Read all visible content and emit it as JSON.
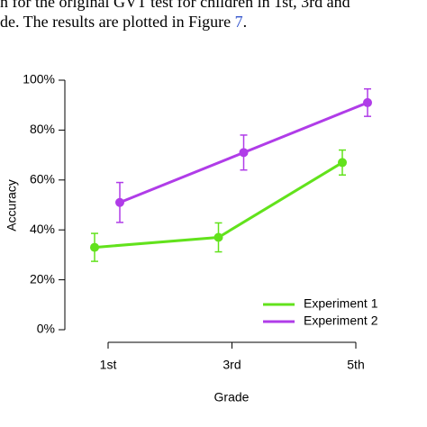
{
  "page_text": {
    "line1": "n for the original GVT test for children in 1st, 3rd and",
    "line2": "de. The results are plotted in Figure",
    "figure_ref": "7",
    "line2_end": "."
  },
  "chart_data": {
    "type": "line",
    "x_label": "Grade",
    "y_label": "Accuracy",
    "categories": [
      "1st",
      "3rd",
      "5th"
    ],
    "series": [
      {
        "name": "Experiment 1",
        "color": "#62e21c",
        "values": [
          33,
          37,
          67
        ],
        "errors": [
          5.6,
          5.8,
          5
        ]
      },
      {
        "name": "Experiment 2",
        "color": "#b03ce8",
        "values": [
          51,
          71,
          91
        ],
        "errors": [
          8,
          7,
          5.5
        ]
      }
    ],
    "ylim": [
      0,
      100
    ],
    "yticks": [
      {
        "value": 0,
        "label": "0%"
      },
      {
        "value": 20,
        "label": "20%"
      },
      {
        "value": 40,
        "label": "40%"
      },
      {
        "value": 60,
        "label": "60%"
      },
      {
        "value": 80,
        "label": "80%"
      },
      {
        "value": 100,
        "label": "100%"
      }
    ],
    "legend": "bottom-right"
  }
}
